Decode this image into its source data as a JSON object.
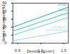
{
  "chart_data": {
    "type": "line",
    "x_label": "Density [g/cm³]",
    "y_label": "Stress increment [%]",
    "xlim": [
      0.4,
      1.6
    ],
    "xticks": [
      {
        "value": 0.5,
        "label": "0.5"
      },
      {
        "value": 1,
        "label": "1.0"
      },
      {
        "value": 1.5,
        "label": "1.5"
      }
    ],
    "ylim": [
      0,
      50
    ],
    "yticks": [
      0,
      10,
      20,
      30,
      40,
      50
    ],
    "x": [
      0.4,
      1.6
    ],
    "series": [
      {
        "name": "σmax",
        "color": "#1fa8bd",
        "values": [
          20,
          45
        ]
      },
      {
        "name": "σmid",
        "color": "#45b8cb",
        "values": [
          15,
          38
        ]
      },
      {
        "name": "σmin",
        "color": "#72c9d8",
        "values": [
          10,
          32
        ]
      },
      {
        "name": "oxidative carbonization",
        "color": "#9dd9e4",
        "values": [
          3,
          15
        ]
      }
    ]
  }
}
